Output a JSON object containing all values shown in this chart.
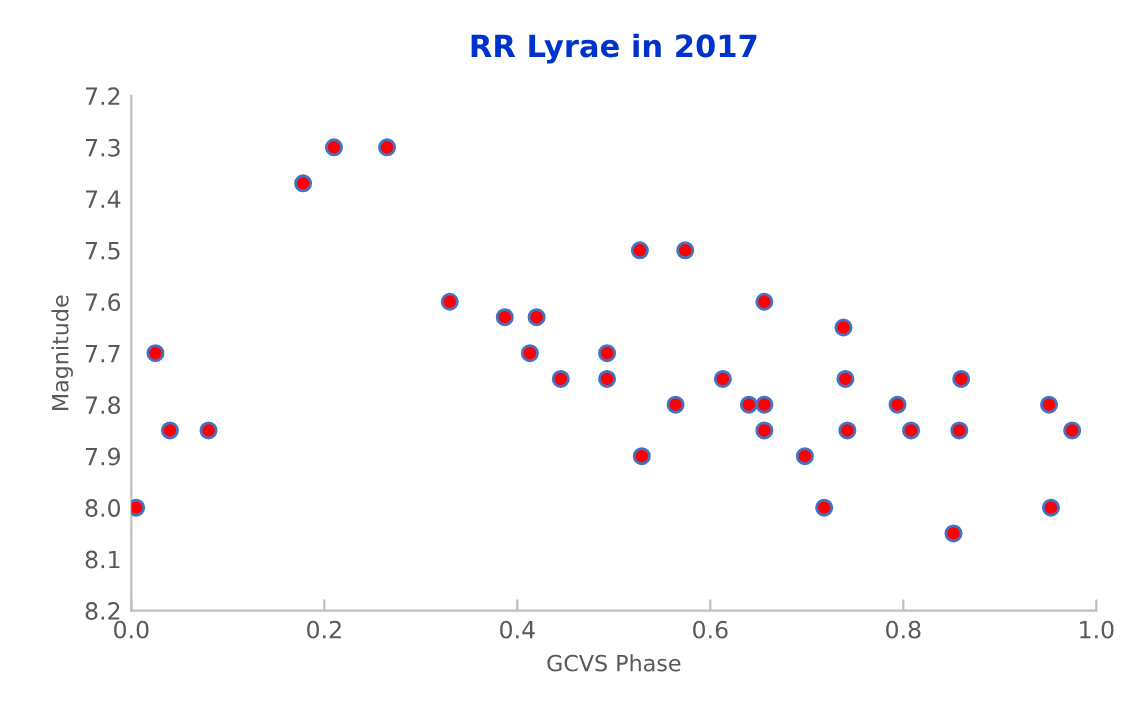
{
  "chart_data": {
    "type": "scatter",
    "title": "RR Lyrae in 2017",
    "xlabel": "GCVS Phase",
    "ylabel": "Magnitude",
    "x": [
      0.005,
      0.025,
      0.04,
      0.08,
      0.178,
      0.21,
      0.265,
      0.33,
      0.387,
      0.42,
      0.413,
      0.445,
      0.493,
      0.493,
      0.527,
      0.574,
      0.564,
      0.529,
      0.613,
      0.64,
      0.656,
      0.656,
      0.656,
      0.698,
      0.718,
      0.738,
      0.74,
      0.742,
      0.794,
      0.808,
      0.852,
      0.858,
      0.86,
      0.951,
      0.953,
      0.975
    ],
    "series": [
      {
        "color": "#ff0000",
        "values": [
          8.0,
          7.7,
          7.85,
          7.85,
          7.37,
          7.3,
          7.3,
          7.6,
          7.63,
          7.63,
          7.7,
          7.75,
          7.7,
          7.75,
          7.5,
          7.5,
          7.8,
          7.9,
          7.75,
          7.8,
          7.8,
          7.6,
          7.85,
          7.9,
          8.0,
          7.65,
          7.75,
          7.85,
          7.8,
          7.85,
          8.05,
          7.85,
          7.75,
          7.8,
          8.0,
          7.85
        ]
      }
    ],
    "xlim": [
      0,
      1
    ],
    "xticks": [
      {
        "value": 0,
        "label": "0.0"
      },
      0.2,
      0.4,
      0.6,
      0.8,
      {
        "value": 1,
        "label": "1.0"
      }
    ],
    "ylim": [
      8.2,
      7.2
    ],
    "yticks": [
      {
        "value": 7.2,
        "label": "7.2"
      },
      7.3,
      7.4,
      7.5,
      7.6,
      7.7,
      7.8,
      7.9,
      {
        "value": 8,
        "label": "8.0"
      },
      8.1,
      8.2
    ],
    "marker": "circle",
    "grid": false,
    "legend": false
  }
}
